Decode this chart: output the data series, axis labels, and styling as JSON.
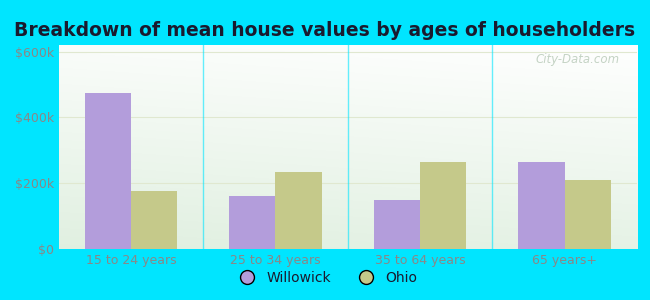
{
  "title": "Breakdown of mean house values by ages of householders",
  "categories": [
    "15 to 24 years",
    "25 to 34 years",
    "35 to 64 years",
    "65 years+"
  ],
  "willowick_values": [
    475000,
    160000,
    148000,
    265000
  ],
  "ohio_values": [
    175000,
    235000,
    265000,
    210000
  ],
  "willowick_color": "#b39ddb",
  "ohio_color": "#c5c98a",
  "ylim": [
    0,
    620000
  ],
  "yticks": [
    0,
    200000,
    400000,
    600000
  ],
  "ytick_labels": [
    "$0",
    "$200k",
    "$400k",
    "$600k"
  ],
  "bg_color_top_left": "#d4efd4",
  "bg_color_top_right": "#f0fff0",
  "bg_color_bottom": "#e8f5e0",
  "outer_background": "#00e5ff",
  "bar_width": 0.32,
  "title_fontsize": 13.5,
  "tick_fontsize": 9,
  "legend_fontsize": 10,
  "watermark": "City-Data.com",
  "grid_color": "#e0e8d0",
  "tick_color": "#888888",
  "title_color": "#1a1a2e"
}
